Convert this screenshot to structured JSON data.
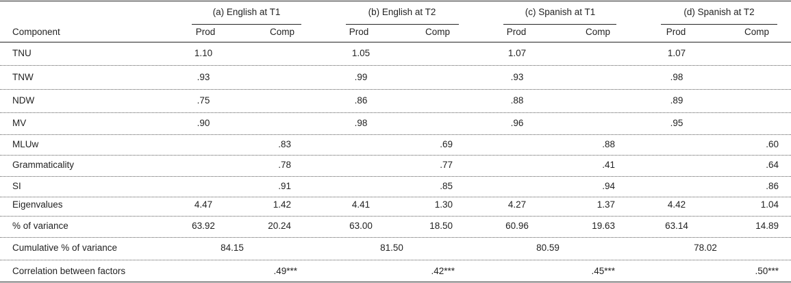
{
  "table": {
    "component_header": "Component",
    "groups": [
      {
        "title": "(a) English at T1",
        "prod": "Prod",
        "comp": "Comp"
      },
      {
        "title": "(b) English at T2",
        "prod": "Prod",
        "comp": "Comp"
      },
      {
        "title": "(c) Spanish at T1",
        "prod": "Prod",
        "comp": "Comp"
      },
      {
        "title": "(d) Spanish at T2",
        "prod": "Prod",
        "comp": "Comp"
      }
    ],
    "rows": [
      {
        "label": "TNU",
        "values": [
          "1.10",
          null,
          "1.05",
          null,
          "1.07",
          null,
          "1.07",
          null
        ]
      },
      {
        "label": "TNW",
        "values": [
          ".93",
          null,
          ".99",
          null,
          ".93",
          null,
          ".98",
          null
        ]
      },
      {
        "label": "NDW",
        "values": [
          ".75",
          null,
          ".86",
          null,
          ".88",
          null,
          ".89",
          null
        ]
      },
      {
        "label": "MV",
        "values": [
          ".90",
          null,
          ".98",
          null,
          ".96",
          null,
          ".95",
          null
        ]
      },
      {
        "label": "MLUw",
        "values": [
          null,
          ".83",
          null,
          ".69",
          null,
          ".88",
          null,
          ".60"
        ]
      },
      {
        "label": "Grammaticality",
        "values": [
          null,
          ".78",
          null,
          ".77",
          null,
          ".41",
          null,
          ".64"
        ]
      },
      {
        "label": "SI",
        "values": [
          null,
          ".91",
          null,
          ".85",
          null,
          ".94",
          null,
          ".86"
        ]
      },
      {
        "label": "Eigenvalues",
        "values": [
          "4.47",
          "1.42",
          "4.41",
          "1.30",
          "4.27",
          "1.37",
          "4.42",
          "1.04"
        ]
      },
      {
        "label": "% of variance",
        "values": [
          "63.92",
          "20.24",
          "63.00",
          "18.50",
          "60.96",
          "19.63",
          "63.14",
          "14.89"
        ]
      }
    ],
    "cumulative": {
      "label": "Cumulative % of variance",
      "values": [
        "84.15",
        "81.50",
        "80.59",
        "78.02"
      ]
    },
    "correlation": {
      "label": "Correlation between factors",
      "values": [
        ".49***",
        ".42***",
        ".45***",
        ".50***"
      ]
    }
  }
}
